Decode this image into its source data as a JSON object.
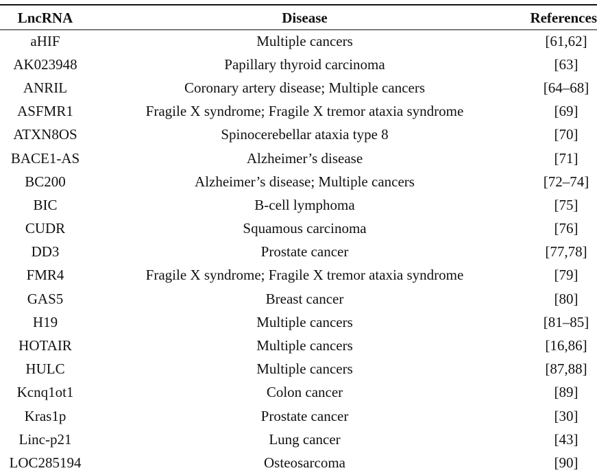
{
  "table": {
    "headers": {
      "lncrna": "LncRNA",
      "disease": "Disease",
      "references": "References"
    },
    "rows": [
      {
        "lncrna": "aHIF",
        "disease": "Multiple cancers",
        "references": "[61,62]"
      },
      {
        "lncrna": "AK023948",
        "disease": "Papillary thyroid carcinoma",
        "references": "[63]"
      },
      {
        "lncrna": "ANRIL",
        "disease": "Coronary artery disease; Multiple cancers",
        "references": "[64–68]"
      },
      {
        "lncrna": "ASFMR1",
        "disease": "Fragile X syndrome; Fragile X tremor ataxia syndrome",
        "references": "[69]"
      },
      {
        "lncrna": "ATXN8OS",
        "disease": "Spinocerebellar ataxia type 8",
        "references": "[70]"
      },
      {
        "lncrna": "BACE1-AS",
        "disease": "Alzheimer’s disease",
        "references": "[71]"
      },
      {
        "lncrna": "BC200",
        "disease": "Alzheimer’s disease; Multiple cancers",
        "references": "[72–74]"
      },
      {
        "lncrna": "BIC",
        "disease": "B-cell lymphoma",
        "references": "[75]"
      },
      {
        "lncrna": "CUDR",
        "disease": "Squamous carcinoma",
        "references": "[76]"
      },
      {
        "lncrna": "DD3",
        "disease": "Prostate cancer",
        "references": "[77,78]"
      },
      {
        "lncrna": "FMR4",
        "disease": "Fragile X syndrome; Fragile X tremor ataxia syndrome",
        "references": "[79]"
      },
      {
        "lncrna": "GAS5",
        "disease": "Breast cancer",
        "references": "[80]"
      },
      {
        "lncrna": "H19",
        "disease": "Multiple cancers",
        "references": "[81–85]"
      },
      {
        "lncrna": "HOTAIR",
        "disease": "Multiple cancers",
        "references": "[16,86]"
      },
      {
        "lncrna": "HULC",
        "disease": "Multiple cancers",
        "references": "[87,88]"
      },
      {
        "lncrna": "Kcnq1ot1",
        "disease": "Colon cancer",
        "references": "[89]"
      },
      {
        "lncrna": "Kras1p",
        "disease": "Prostate cancer",
        "references": "[30]"
      },
      {
        "lncrna": "Linc-p21",
        "disease": "Lung cancer",
        "references": "[43]"
      },
      {
        "lncrna": "LOC285194",
        "disease": "Osteosarcoma",
        "references": "[90]"
      }
    ]
  }
}
